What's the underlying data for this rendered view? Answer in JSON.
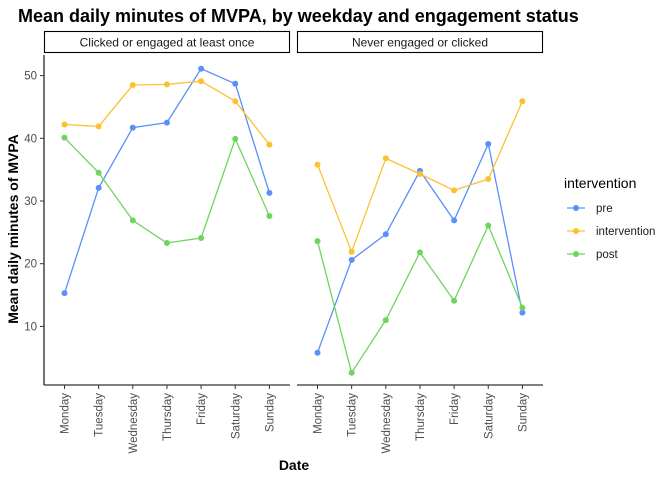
{
  "chart_data": {
    "type": "line",
    "title": "Mean daily minutes of MVPA, by weekday and engagement status",
    "xlabel": "Date",
    "ylabel": "Mean daily minutes of MVPA",
    "ylim": [
      0,
      55
    ],
    "yticks": [
      10,
      20,
      30,
      40,
      50
    ],
    "grid": false,
    "legend": {
      "title": "intervention",
      "position": "right"
    },
    "categories": [
      "Monday",
      "Tuesday",
      "Wednesday",
      "Thursday",
      "Friday",
      "Saturday",
      "Sunday"
    ],
    "series_styles": [
      {
        "name": "pre",
        "color": "#5b8ff9"
      },
      {
        "name": "intervention",
        "color": "#fcc131"
      },
      {
        "name": "post",
        "color": "#6fd45f"
      }
    ],
    "panels": [
      {
        "label": "Clicked or engaged at least once",
        "series": [
          {
            "name": "pre",
            "values": [
              15.3,
              32.1,
              41.7,
              42.5,
              51.1,
              48.7,
              31.3
            ]
          },
          {
            "name": "intervention",
            "values": [
              42.2,
              41.9,
              48.5,
              48.6,
              49.1,
              45.9,
              39.0
            ]
          },
          {
            "name": "post",
            "values": [
              40.1,
              34.5,
              26.9,
              23.3,
              24.1,
              39.9,
              27.6
            ]
          }
        ]
      },
      {
        "label": "Never engaged or clicked",
        "series": [
          {
            "name": "pre",
            "values": [
              5.8,
              20.6,
              24.7,
              34.8,
              26.9,
              39.1,
              12.2
            ]
          },
          {
            "name": "intervention",
            "values": [
              35.8,
              21.9,
              36.8,
              34.3,
              31.7,
              33.5,
              45.9
            ]
          },
          {
            "name": "post",
            "values": [
              23.6,
              2.6,
              11.0,
              21.8,
              14.1,
              26.1,
              13.0
            ]
          }
        ]
      }
    ]
  }
}
